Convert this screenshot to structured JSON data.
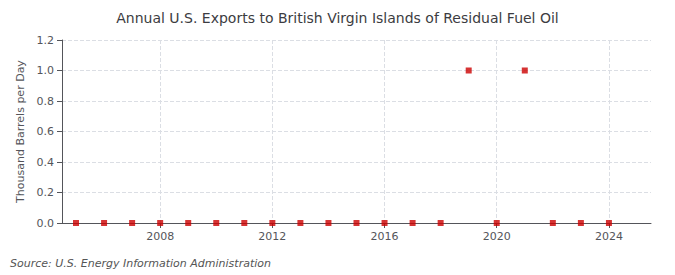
{
  "chart_data": {
    "type": "scatter",
    "title": "Annual U.S. Exports to British Virgin Islands of Residual Fuel Oil",
    "ylabel": "Thousand Barrels per Day",
    "annotations": [
      "Source: U.S. Energy Information Administration"
    ],
    "x": [
      2005,
      2006,
      2007,
      2008,
      2009,
      2010,
      2011,
      2012,
      2013,
      2014,
      2015,
      2016,
      2017,
      2018,
      2019,
      2020,
      2021,
      2022,
      2023,
      2024
    ],
    "values": [
      0.0,
      0.0,
      0.0,
      0.0,
      0.0,
      0.0,
      0.0,
      0.0,
      0.0,
      0.0,
      0.0,
      0.0,
      0.0,
      0.0,
      1.0,
      0.0,
      1.0,
      0.0,
      0.0,
      0.0
    ],
    "color": "#cc0000",
    "marker": "square",
    "xlim": [
      2004.5,
      2025.5
    ],
    "xticks": [
      2008,
      2012,
      2016,
      2020,
      2024
    ],
    "ylim": [
      0.0,
      1.2
    ],
    "yticks": [
      {
        "value": 0.0,
        "label": "0.0"
      },
      0.2,
      0.4,
      0.6,
      0.8,
      {
        "value": 1.0,
        "label": "1.0"
      },
      1.2
    ],
    "grid": true
  }
}
